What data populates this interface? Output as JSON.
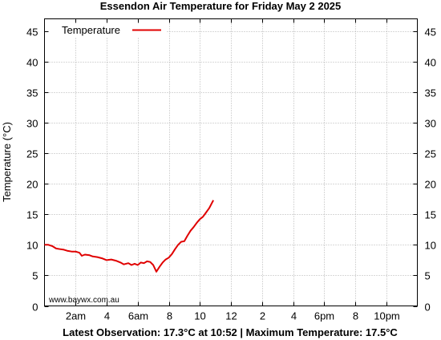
{
  "chart_data": {
    "type": "line",
    "title": "Essendon Air Temperature  for Friday May 2 2025",
    "ylabel": "Temperature (°C)",
    "xlabel": "",
    "footer": "Latest Observation: 17.3°C at 10:52 | Maximum Temperature: 17.5°C",
    "watermark": "www.baywx.com.au",
    "ylim": [
      0,
      47
    ],
    "yticks": [
      0,
      5,
      10,
      15,
      20,
      25,
      30,
      35,
      40,
      45
    ],
    "xlim": [
      0,
      24
    ],
    "xticks": [
      {
        "hour": 2,
        "label": "2am"
      },
      {
        "hour": 4,
        "label": "4"
      },
      {
        "hour": 6,
        "label": "6am"
      },
      {
        "hour": 8,
        "label": "8"
      },
      {
        "hour": 10,
        "label": "10"
      },
      {
        "hour": 12,
        "label": "12"
      },
      {
        "hour": 14,
        "label": "2"
      },
      {
        "hour": 16,
        "label": "4"
      },
      {
        "hour": 18,
        "label": "6pm"
      },
      {
        "hour": 20,
        "label": "8"
      },
      {
        "hour": 22,
        "label": "10pm"
      }
    ],
    "grid": true,
    "legend_position": "top-left",
    "series": [
      {
        "name": "Temperature",
        "color": "#e00000",
        "x": [
          0.0,
          0.25,
          0.5,
          0.75,
          1.0,
          1.25,
          1.5,
          1.75,
          2.0,
          2.25,
          2.4,
          2.6,
          2.9,
          3.1,
          3.4,
          3.7,
          4.0,
          4.3,
          4.6,
          4.9,
          5.1,
          5.4,
          5.6,
          5.8,
          6.0,
          6.2,
          6.4,
          6.6,
          6.8,
          7.0,
          7.2,
          7.4,
          7.6,
          7.8,
          8.0,
          8.2,
          8.4,
          8.6,
          8.8,
          9.0,
          9.2,
          9.4,
          9.6,
          9.8,
          10.0,
          10.2,
          10.4,
          10.6,
          10.87
        ],
        "values": [
          10.0,
          10.0,
          9.8,
          9.4,
          9.3,
          9.2,
          9.0,
          8.9,
          8.9,
          8.7,
          8.2,
          8.4,
          8.3,
          8.1,
          8.0,
          7.8,
          7.5,
          7.6,
          7.4,
          7.1,
          6.8,
          7.0,
          6.7,
          6.9,
          6.7,
          7.1,
          7.0,
          7.3,
          7.2,
          6.7,
          5.6,
          6.4,
          7.1,
          7.6,
          7.9,
          8.5,
          9.3,
          10.0,
          10.5,
          10.6,
          11.5,
          12.3,
          12.9,
          13.6,
          14.2,
          14.6,
          15.3,
          16.0,
          17.3
        ]
      }
    ]
  }
}
